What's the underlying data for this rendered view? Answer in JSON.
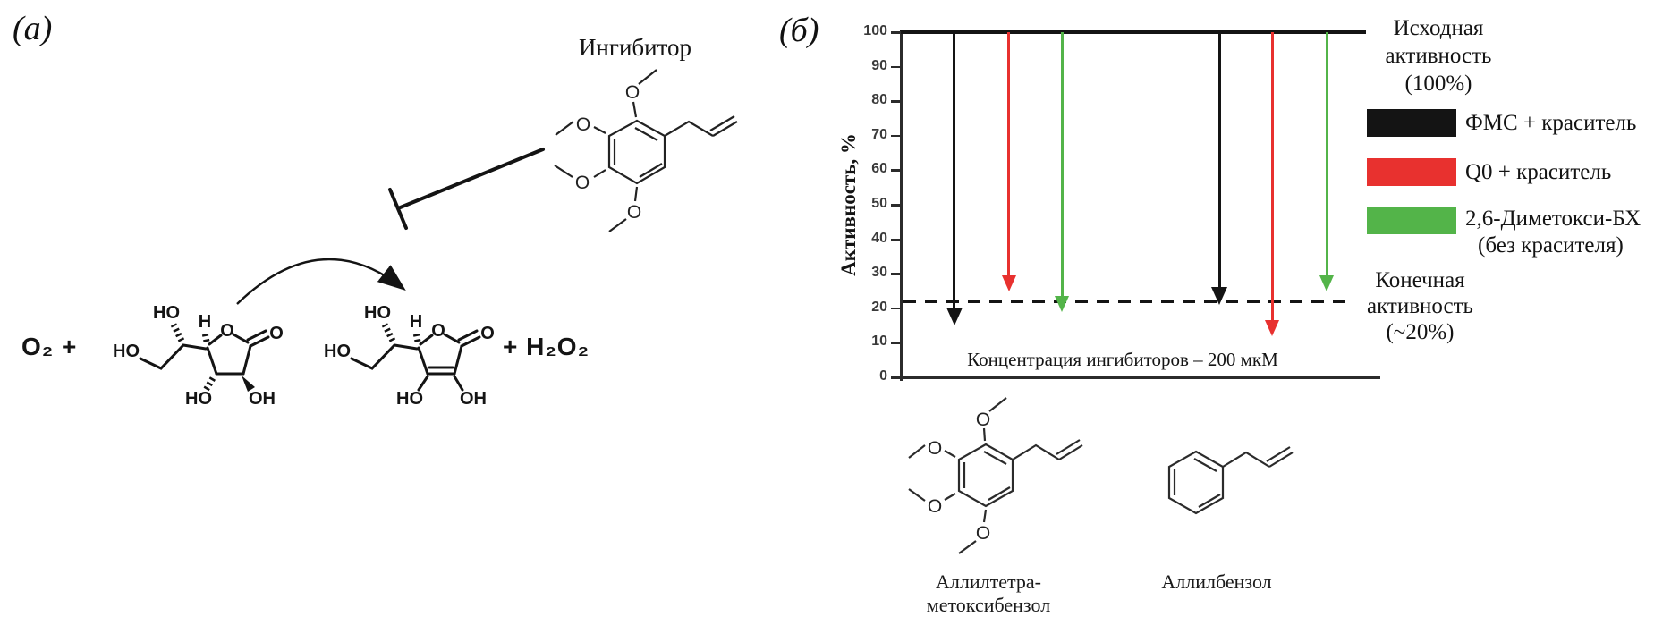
{
  "figure": {
    "panel_a_label": "(a)",
    "panel_b_label": "(б)"
  },
  "atoms": {
    "ho": "HO",
    "oh": "OH",
    "o": "O",
    "h": "H"
  },
  "panel_a": {
    "inhibitor_title": "Ингибитор",
    "oxygen_term": "O₂ +",
    "peroxide_term": "+  H₂O₂"
  },
  "panel_b": {
    "structure_captions": {
      "left_line1": "Аллилтетра-",
      "left_line2": "метоксибензол",
      "right": "Аллилбензол"
    }
  },
  "chart_data": {
    "type": "arrow-drop (enzyme activity inhibition)",
    "title": "",
    "xlabel": "",
    "ylabel": "Активность, %",
    "ylim": [
      0,
      100
    ],
    "yticks": [
      0,
      10,
      20,
      30,
      40,
      50,
      60,
      70,
      80,
      90,
      100
    ],
    "grid": false,
    "initial_line_pct": 100,
    "final_line_pct": 22,
    "annotation": "Концентрация ингибиторов – 200 мкМ",
    "legend": {
      "position": "right",
      "initial_lines": [
        "Исходная",
        "активность",
        "(100%)"
      ],
      "final_lines": [
        "Конечная",
        "активность",
        "(~20%)"
      ],
      "items": [
        {
          "label": "ФМС + краситель",
          "color": "#141414"
        },
        {
          "label": "Q0 + краситель",
          "color": "#e8312f"
        },
        {
          "label": "2,6-Диметокси-БХ",
          "label2": "(без красителя)",
          "color": "#53b449"
        }
      ]
    },
    "groups": [
      {
        "inhibitor": "Аллилтетраметоксибензол"
      },
      {
        "inhibitor": "Аллилбензол"
      }
    ],
    "arrows": [
      {
        "series": "ФМС + краситель",
        "group": "Аллилтетраметоксибензол",
        "color": "#141414",
        "x_frac": 0.11,
        "end_pct": 15
      },
      {
        "series": "Q0 + краситель",
        "group": "Аллилтетраметоксибензол",
        "color": "#e8312f",
        "x_frac": 0.224,
        "end_pct": 25
      },
      {
        "series": "2,6-Диметокси-БХ (без красителя)",
        "group": "Аллилтетраметоксибензол",
        "color": "#53b449",
        "x_frac": 0.335,
        "end_pct": 19
      },
      {
        "series": "ФМС + краситель",
        "group": "Аллилбензол",
        "color": "#141414",
        "x_frac": 0.664,
        "end_pct": 21
      },
      {
        "series": "Q0 + краситель",
        "group": "Аллилбензол",
        "color": "#e8312f",
        "x_frac": 0.774,
        "end_pct": 12
      },
      {
        "series": "2,6-Диметокси-БХ (без красителя)",
        "group": "Аллилбензол",
        "color": "#53b449",
        "x_frac": 0.888,
        "end_pct": 25
      }
    ]
  }
}
